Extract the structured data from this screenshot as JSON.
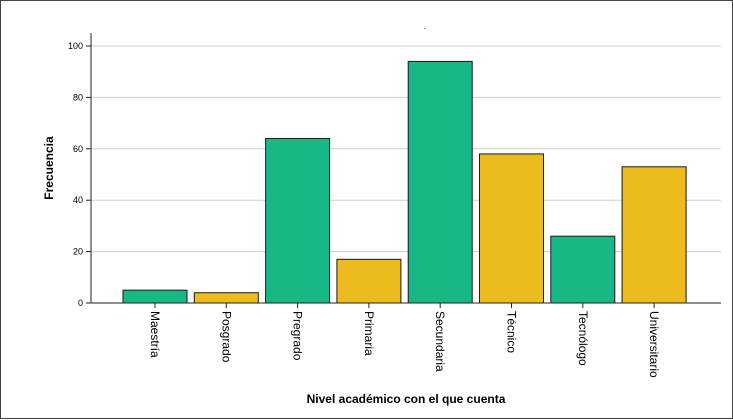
{
  "chart_data": {
    "type": "bar",
    "title": ".",
    "xlabel": "Nivel académico con el que cuenta",
    "ylabel": "Frecuencia",
    "ylim": [
      0,
      100
    ],
    "yticks": [
      0,
      20,
      40,
      60,
      80,
      100
    ],
    "grid": "horizontal",
    "categories": [
      "Maestría",
      "Posgrado",
      "Pregrado",
      "Primaria",
      "Secundaria",
      "Técnico",
      "Tecnólogo",
      "Universitario"
    ],
    "values": [
      5,
      4,
      64,
      17,
      94,
      58,
      26,
      53
    ],
    "colors": [
      "#17b886",
      "#ecbc1f",
      "#17b886",
      "#ecbc1f",
      "#17b886",
      "#ecbc1f",
      "#17b886",
      "#ecbc1f"
    ]
  }
}
